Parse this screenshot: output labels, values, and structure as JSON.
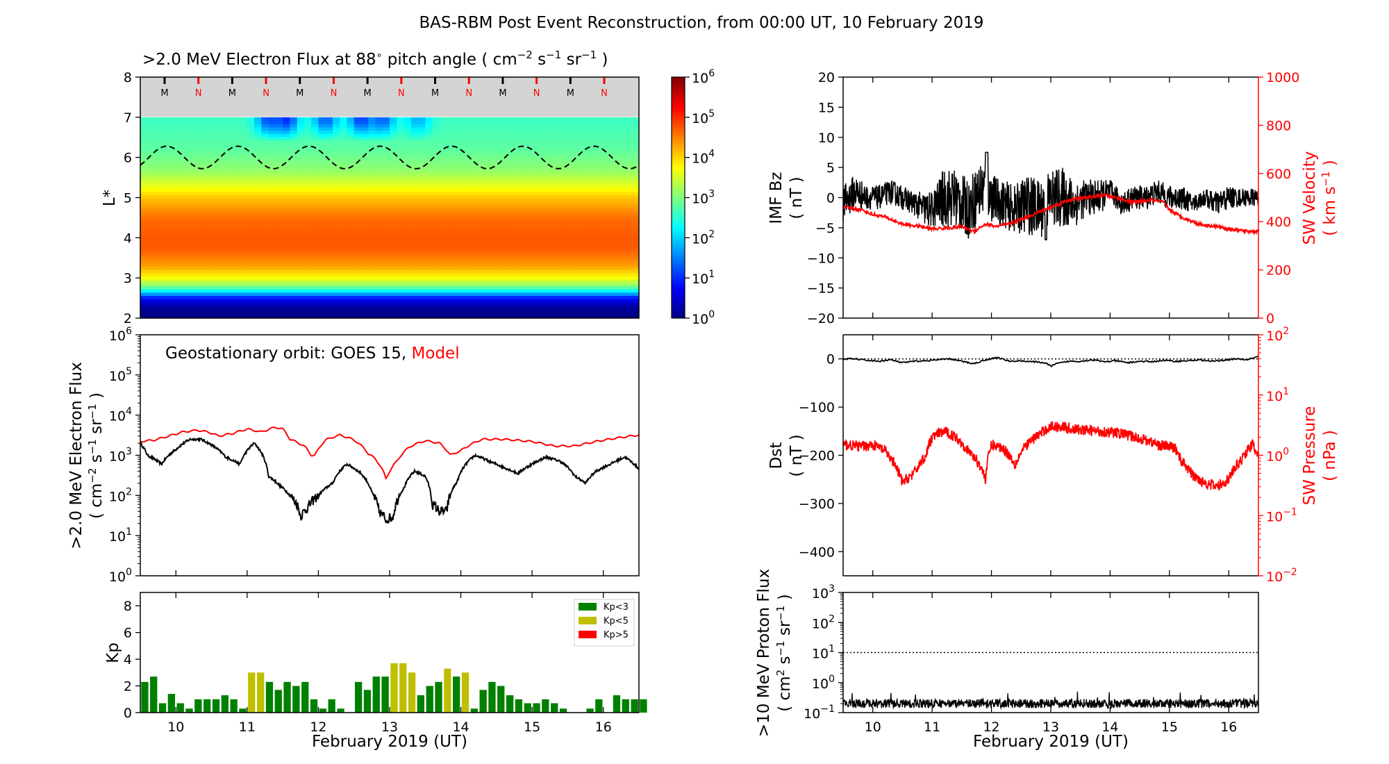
{
  "title": "BAS-RBM Post Event Reconstruction, from 00:00 UT, 10 February 2019",
  "colors": {
    "model": "#ff0000",
    "obs": "#000000",
    "kp_low": "#008000",
    "kp_mid": "#bfbf00",
    "kp_high": "#ff0000",
    "mlt_mark": "#000000",
    "mlt_red": "#ff0000"
  },
  "date_ticks": [
    "10",
    "11",
    "12",
    "13",
    "14",
    "15",
    "16"
  ],
  "xlim_days": [
    9.5,
    16.5
  ],
  "xlabel": "February 2019 (UT)",
  "chart_data": [
    {
      "type": "heatmap",
      "title": ">2.0 MeV Electron Flux at 88",
      "title_unit": "pitch angle ( cm",
      "ylabel": "L*",
      "ylim": [
        2,
        8
      ],
      "yticks": [
        "2",
        "3",
        "4",
        "5",
        "6",
        "7",
        "8"
      ],
      "colorbar_ticks": [
        "10",
        "10",
        "10",
        "10",
        "10",
        "10",
        "10"
      ],
      "colorbar_exps": [
        "0",
        "1",
        "2",
        "3",
        "4",
        "5",
        "6"
      ],
      "colorbar_range_log10": [
        0,
        6
      ],
      "profile_log10_by_L": [
        {
          "L": 2.0,
          "v": 0.0
        },
        {
          "L": 2.3,
          "v": 0.2
        },
        {
          "L": 2.5,
          "v": 0.8
        },
        {
          "L": 2.65,
          "v": 2.0
        },
        {
          "L": 2.8,
          "v": 3.0
        },
        {
          "L": 3.0,
          "v": 3.7
        },
        {
          "L": 3.3,
          "v": 4.3
        },
        {
          "L": 3.7,
          "v": 4.7
        },
        {
          "L": 4.0,
          "v": 4.75
        },
        {
          "L": 4.5,
          "v": 4.6
        },
        {
          "L": 5.0,
          "v": 4.1
        },
        {
          "L": 5.3,
          "v": 3.6
        },
        {
          "L": 5.7,
          "v": 3.1
        },
        {
          "L": 6.2,
          "v": 2.8
        },
        {
          "L": 7.0,
          "v": 2.6
        }
      ],
      "depletion_days": [
        {
          "day": 11.3,
          "log10": 1.2
        },
        {
          "day": 11.55,
          "log10": 1.0
        },
        {
          "day": 12.1,
          "log10": 1.3
        },
        {
          "day": 12.6,
          "log10": 1.1
        },
        {
          "day": 12.9,
          "log10": 1.3
        },
        {
          "day": 13.4,
          "log10": 1.8
        }
      ],
      "geo_orbit_L": {
        "mean": 6.0,
        "amplitude": 0.28,
        "period_days": 1.0
      },
      "mlt_markers": [
        "M",
        "N",
        "M",
        "N",
        "M",
        "N",
        "M",
        "N",
        "M",
        "N",
        "M",
        "N",
        "M",
        "N"
      ]
    },
    {
      "type": "line",
      "legend_text": "Geostationary orbit:   GOES 15,",
      "legend_model": "Model",
      "ylabel": ">2.0 MeV Electron Flux",
      "ylabel_unit": "( cm",
      "yscale": "log",
      "ylim": [
        1,
        1000000
      ],
      "ytick_exps": [
        "0",
        "1",
        "2",
        "3",
        "4",
        "5",
        "6"
      ],
      "series": [
        {
          "name": "Model",
          "x": [
            9.5,
            9.7,
            9.9,
            10.1,
            10.3,
            10.45,
            10.6,
            10.8,
            11.0,
            11.2,
            11.4,
            11.5,
            11.6,
            11.8,
            11.9,
            11.95,
            12.0,
            12.1,
            12.3,
            12.5,
            12.7,
            12.8,
            12.95,
            13.1,
            13.3,
            13.5,
            13.7,
            13.85,
            14.0,
            14.3,
            14.6,
            15.0,
            15.3,
            15.6,
            15.9,
            16.2,
            16.5
          ],
          "y": [
            2200,
            2400,
            3000,
            3800,
            4200,
            3800,
            3000,
            3500,
            4500,
            3800,
            5000,
            4500,
            2500,
            1700,
            1000,
            1000,
            1400,
            2400,
            3200,
            2400,
            1100,
            800,
            250,
            700,
            1700,
            2300,
            2000,
            1000,
            1300,
            2500,
            2500,
            2200,
            1700,
            1700,
            2200,
            2700,
            3200
          ]
        },
        {
          "name": "GOES 15",
          "x": [
            9.5,
            9.6,
            9.8,
            10.0,
            10.2,
            10.35,
            10.5,
            10.7,
            10.9,
            11.1,
            11.3,
            11.45,
            11.6,
            11.7,
            11.75,
            11.85,
            12.0,
            12.2,
            12.4,
            12.6,
            12.75,
            12.85,
            12.95,
            13.05,
            13.2,
            13.35,
            13.5,
            13.6,
            13.7,
            13.8,
            13.95,
            14.2,
            14.4,
            14.6,
            14.8,
            15.0,
            15.2,
            15.4,
            15.6,
            15.75,
            15.9,
            16.1,
            16.3,
            16.5
          ],
          "y": [
            2000,
            1000,
            600,
            1400,
            2500,
            2500,
            1800,
            900,
            600,
            2000,
            300,
            180,
            100,
            60,
            30,
            50,
            100,
            200,
            600,
            350,
            120,
            40,
            25,
            30,
            150,
            400,
            300,
            60,
            40,
            40,
            220,
            1000,
            700,
            500,
            350,
            600,
            900,
            700,
            300,
            200,
            400,
            600,
            900,
            450
          ]
        }
      ]
    },
    {
      "type": "bar",
      "ylabel": "Kp",
      "ylim": [
        0,
        9
      ],
      "yticks": [
        "0",
        "2",
        "4",
        "6",
        "8"
      ],
      "legend": [
        "Kp<3",
        "Kp<5",
        "Kp>5"
      ],
      "bar_width_days": 0.1,
      "start_day": 9.5,
      "values": [
        2.3,
        2.7,
        0.7,
        1.4,
        0.7,
        0.3,
        1.0,
        1.0,
        1.0,
        1.3,
        1.0,
        0.3,
        3.0,
        3.0,
        2.3,
        1.7,
        2.3,
        2.0,
        2.3,
        1.0,
        0.3,
        1.0,
        0.3,
        0.0,
        2.3,
        1.7,
        2.7,
        2.7,
        3.7,
        3.7,
        3.0,
        1.3,
        2.0,
        2.3,
        3.3,
        2.7,
        3.0,
        0.3,
        1.7,
        2.3,
        2.0,
        1.3,
        1.0,
        0.7,
        0.7,
        1.0,
        0.7,
        0.3,
        0.0,
        0.0,
        0.3,
        1.0,
        0.0,
        1.3,
        1.0,
        1.0,
        1.0
      ]
    },
    {
      "type": "line",
      "ylabel": "IMF Bz",
      "ylabel_unit": "( nT )",
      "ylim": [
        -20,
        20
      ],
      "yticks": [
        "−20",
        "−15",
        "−10",
        "−5",
        "0",
        "5",
        "10",
        "15",
        "20"
      ],
      "ylabel_right": "SW Velocity",
      "ylabel_right_unit": "( km s",
      "ylim_right": [
        0,
        1000
      ],
      "yticks_right": [
        "0",
        "200",
        "400",
        "600",
        "800",
        "1000"
      ],
      "series": [
        {
          "name": "IMF Bz",
          "axis": "left",
          "x": [
            9.5,
            9.7,
            9.9,
            10.1,
            10.3,
            10.5,
            10.7,
            10.9,
            11.0,
            11.2,
            11.4,
            11.6,
            11.8,
            11.9,
            12.0,
            12.2,
            12.4,
            12.6,
            12.8,
            13.0,
            13.2,
            13.4,
            13.6,
            13.8,
            14.0,
            14.2,
            14.4,
            14.6,
            14.8,
            15.0,
            15.2,
            15.4,
            15.6,
            15.8,
            16.0,
            16.2,
            16.5
          ],
          "y": [
            -1,
            1,
            0,
            0,
            1,
            0,
            -1,
            -2,
            -2,
            0,
            0,
            -2,
            1,
            2,
            0,
            -1,
            -2,
            -1,
            -2,
            0,
            0,
            -1,
            0,
            0,
            1,
            -1,
            0,
            0,
            1,
            0,
            0,
            -1,
            0,
            -1,
            0,
            0,
            0
          ],
          "amp": [
            3,
            3,
            2,
            2,
            2,
            2,
            2,
            3,
            3,
            5,
            5,
            5,
            5,
            5,
            4,
            4,
            4,
            5,
            5,
            5,
            5,
            4,
            3,
            3,
            2,
            2,
            2,
            2,
            2,
            2,
            2,
            1.5,
            1.5,
            2,
            2,
            1.5,
            1.5
          ]
        },
        {
          "name": "SW Velocity",
          "axis": "right",
          "x": [
            9.5,
            9.8,
            10.0,
            10.2,
            10.5,
            10.8,
            11.0,
            11.3,
            11.5,
            11.7,
            11.9,
            12.1,
            12.3,
            12.5,
            12.7,
            12.9,
            13.1,
            13.3,
            13.6,
            13.9,
            14.1,
            14.4,
            14.7,
            14.9,
            15.0,
            15.2,
            15.5,
            15.8,
            16.0,
            16.3,
            16.5
          ],
          "y": [
            460,
            450,
            430,
            420,
            390,
            380,
            370,
            375,
            380,
            360,
            390,
            380,
            390,
            410,
            430,
            450,
            470,
            490,
            500,
            510,
            500,
            480,
            490,
            480,
            450,
            420,
            390,
            380,
            370,
            360,
            360
          ]
        }
      ]
    },
    {
      "type": "line",
      "ylabel": "Dst",
      "ylabel_unit": "( nT )",
      "ylim": [
        -450,
        50
      ],
      "yticks": [
        "−400",
        "−300",
        "−200",
        "−100",
        "0"
      ],
      "ylabel_right": "SW Pressure",
      "ylabel_right_unit": "( nPa )",
      "yscale_right": "log",
      "ylim_right": [
        0.01,
        100
      ],
      "ytick_right_exps": [
        "−2",
        "−1",
        "0",
        "1",
        "2"
      ],
      "series": [
        {
          "name": "Dst",
          "axis": "left",
          "x": [
            9.5,
            9.7,
            9.9,
            10.1,
            10.3,
            10.5,
            10.7,
            10.9,
            11.1,
            11.3,
            11.5,
            11.7,
            11.9,
            12.1,
            12.3,
            12.5,
            12.7,
            12.9,
            13.0,
            13.1,
            13.3,
            13.5,
            13.7,
            13.9,
            14.1,
            14.3,
            14.5,
            14.7,
            14.9,
            15.1,
            15.3,
            15.5,
            15.7,
            15.9,
            16.1,
            16.3,
            16.5
          ],
          "y": [
            0,
            0,
            -3,
            -5,
            -2,
            -8,
            -5,
            -4,
            -2,
            0,
            -5,
            -10,
            -2,
            3,
            -5,
            -4,
            -6,
            -8,
            -15,
            -10,
            -5,
            -5,
            -2,
            -6,
            -4,
            -8,
            -5,
            -6,
            -3,
            -5,
            -4,
            -2,
            -5,
            -3,
            0,
            -2,
            5
          ]
        },
        {
          "name": "SW Pressure",
          "axis": "right",
          "x": [
            9.5,
            9.8,
            10.0,
            10.2,
            10.4,
            10.5,
            10.7,
            10.9,
            11.0,
            11.2,
            11.4,
            11.6,
            11.8,
            11.9,
            12.0,
            12.2,
            12.4,
            12.6,
            12.8,
            13.0,
            13.2,
            13.4,
            13.6,
            13.8,
            14.0,
            14.2,
            14.4,
            14.6,
            14.8,
            15.0,
            15.1,
            15.2,
            15.4,
            15.6,
            15.8,
            16.0,
            16.2,
            16.4,
            16.5
          ],
          "y": [
            1.5,
            1.4,
            1.5,
            1.2,
            0.6,
            0.35,
            0.5,
            1.0,
            2.0,
            2.5,
            2.0,
            1.2,
            0.7,
            0.4,
            1.5,
            1.3,
            0.7,
            1.5,
            2.2,
            3.0,
            3.0,
            2.7,
            2.6,
            2.5,
            2.4,
            2.3,
            2.0,
            1.8,
            1.5,
            1.4,
            1.3,
            0.8,
            0.45,
            0.35,
            0.3,
            0.4,
            0.8,
            1.5,
            1.0
          ]
        }
      ]
    },
    {
      "type": "line",
      "ylabel": ">10 MeV Proton Flux",
      "ylabel_unit": "( cm",
      "yscale": "log",
      "ylim": [
        0.1,
        1000
      ],
      "ytick_exps": [
        "−1",
        "0",
        "1",
        "2",
        "3"
      ],
      "threshold": 10,
      "series": [
        {
          "name": ">10 MeV Proton Flux",
          "baseline": 0.2,
          "noise_log10": 0.15
        }
      ]
    }
  ]
}
